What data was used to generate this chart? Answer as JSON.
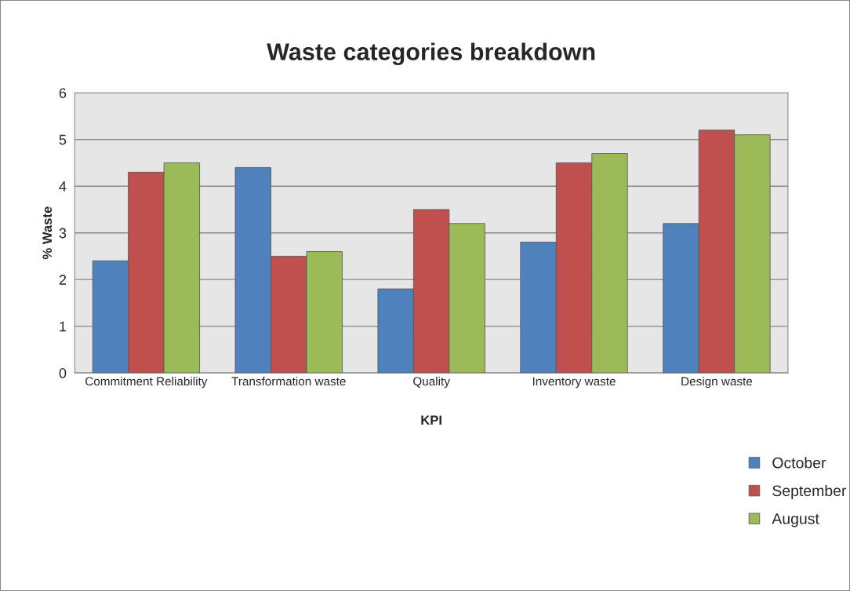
{
  "chart_data": {
    "type": "bar",
    "title": "Waste categories breakdown",
    "xlabel": "KPI",
    "ylabel": "% Waste",
    "categories": [
      "Commitment Reliability",
      "Transformation waste",
      "Quality",
      "Inventory waste",
      "Design waste"
    ],
    "series": [
      {
        "name": "October",
        "color": "#4f81bd",
        "values": [
          2.4,
          4.4,
          1.8,
          2.8,
          3.2
        ]
      },
      {
        "name": "September",
        "color": "#c0504d",
        "values": [
          4.3,
          2.5,
          3.5,
          4.5,
          5.2
        ]
      },
      {
        "name": "August",
        "color": "#9bbb59",
        "values": [
          4.5,
          2.6,
          3.2,
          4.7,
          5.1
        ]
      }
    ],
    "ylim": [
      0,
      6
    ],
    "yticks": [
      0,
      1,
      2,
      3,
      4,
      5,
      6
    ],
    "grid": "y",
    "legend": "bottom right"
  }
}
